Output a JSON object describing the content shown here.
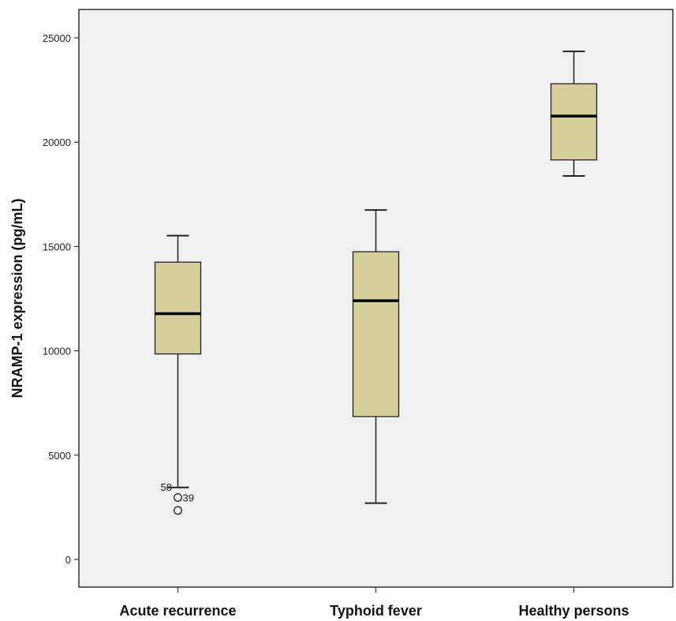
{
  "chart_data": {
    "type": "box",
    "ylabel": "NRAMP-1 expression (pg/mL)",
    "xlabel": "",
    "ylim": [
      -1300,
      25700
    ],
    "yticks": [
      0,
      5000,
      10000,
      15000,
      20000,
      25000
    ],
    "ytick_labels": [
      "0",
      "5000",
      "10000",
      "15000",
      "20000",
      "25000"
    ],
    "grid": false,
    "colors": {
      "box_fill": "#d5cf9a",
      "plot_bg": "#f0f0f0",
      "stroke": "#222222"
    },
    "categories": [
      "Acute recurrence",
      "Typhoid fever",
      "Healthy persons"
    ],
    "boxes": [
      {
        "category": "Acute recurrence",
        "whisker_low": 3450,
        "q1": 9850,
        "median": 11780,
        "q3": 14250,
        "whisker_high": 15520,
        "outliers": [
          {
            "value": 2970,
            "label": "39"
          },
          {
            "value": 2350,
            "label": ""
          }
        ],
        "outlier_labels_near_whisker": [
          "58"
        ]
      },
      {
        "category": "Typhoid fever",
        "whisker_low": 2700,
        "q1": 6850,
        "median": 12400,
        "q3": 14750,
        "whisker_high": 16750,
        "outliers": []
      },
      {
        "category": "Healthy persons",
        "whisker_low": 18380,
        "q1": 19150,
        "median": 21250,
        "q3": 22800,
        "whisker_high": 24350,
        "outliers": []
      }
    ]
  }
}
